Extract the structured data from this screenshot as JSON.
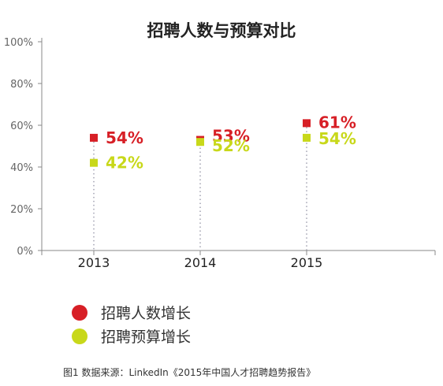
{
  "colors": {
    "hiring": "#d71f26",
    "budget": "#c8d81a",
    "axis": "#888888",
    "dots": "#9a9aaa"
  },
  "chart_data": {
    "type": "scatter",
    "title": "招聘人数与预算对比",
    "categories": [
      "2013",
      "2014",
      "2015"
    ],
    "y_ticks": [
      "0%",
      "20%",
      "40%",
      "60%",
      "80%",
      "100%"
    ],
    "ylim": [
      0,
      100
    ],
    "grid": false,
    "legend_position": "bottom-left",
    "series": [
      {
        "name": "招聘人数增长",
        "values": [
          54,
          53,
          61
        ],
        "labels": [
          "54%",
          "53%",
          "61%"
        ]
      },
      {
        "name": "招聘预算增长",
        "values": [
          42,
          52,
          54
        ],
        "labels": [
          "42%",
          "52%",
          "54%"
        ]
      }
    ]
  },
  "caption": "图1 数据来源：LinkedIn《2015年中国人才招聘趋势报告》"
}
